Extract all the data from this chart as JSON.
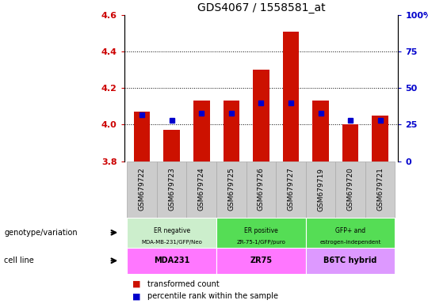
{
  "title": "GDS4067 / 1558581_at",
  "samples": [
    "GSM679722",
    "GSM679723",
    "GSM679724",
    "GSM679725",
    "GSM679726",
    "GSM679727",
    "GSM679719",
    "GSM679720",
    "GSM679721"
  ],
  "red_values": [
    4.07,
    3.97,
    4.13,
    4.13,
    4.3,
    4.51,
    4.13,
    4.0,
    4.05
  ],
  "blue_values": [
    32,
    28,
    33,
    33,
    40,
    40,
    33,
    28,
    28
  ],
  "ymin": 3.8,
  "ymax": 4.6,
  "y2min": 0,
  "y2max": 100,
  "yticks": [
    3.8,
    4.0,
    4.2,
    4.4,
    4.6
  ],
  "y2ticks": [
    0,
    25,
    50,
    75,
    100
  ],
  "bar_color": "#cc1100",
  "dot_color": "#0000cc",
  "legend_items": [
    "transformed count",
    "percentile rank within the sample"
  ],
  "tick_color_left": "#cc0000",
  "tick_color_right": "#0000cc",
  "bar_width": 0.55,
  "geno_groups": [
    {
      "label": "ER negative\nMDA-MB-231/GFP/Neo",
      "start": 0,
      "end": 3,
      "color": "#cceecc"
    },
    {
      "label": "ER positive\nZR-75-1/GFP/puro",
      "start": 3,
      "end": 6,
      "color": "#55dd55"
    },
    {
      "label": "GFP+ and\nestrogen-independent",
      "start": 6,
      "end": 9,
      "color": "#55dd55"
    }
  ],
  "cell_groups": [
    {
      "label": "MDA231",
      "start": 0,
      "end": 3,
      "color": "#ff77ff"
    },
    {
      "label": "ZR75",
      "start": 3,
      "end": 6,
      "color": "#ff77ff"
    },
    {
      "label": "B6TC hybrid",
      "start": 6,
      "end": 9,
      "color": "#dd99ff"
    }
  ],
  "sample_box_color": "#cccccc",
  "sample_box_edge": "#aaaaaa"
}
